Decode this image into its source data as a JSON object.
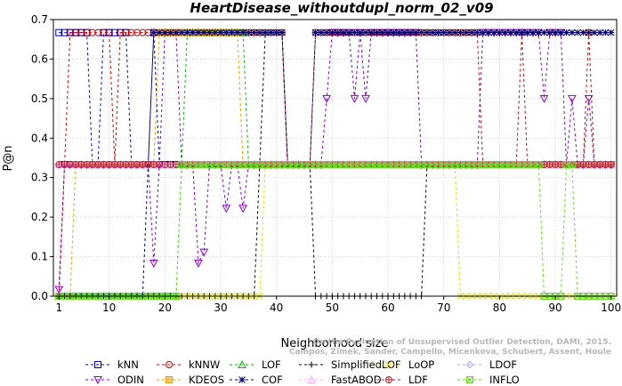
{
  "chart_data": {
    "type": "line",
    "title": "HeartDisease_withoutdupl_norm_02_v09",
    "xlabel": "Neighborhood size",
    "ylabel": "P@n",
    "xlim": [
      0,
      101
    ],
    "ylim": [
      0,
      0.7
    ],
    "x_ticks": [
      1,
      10,
      20,
      30,
      40,
      50,
      60,
      70,
      80,
      90,
      100
    ],
    "y_ticks": [
      0.0,
      0.1,
      0.2,
      0.3,
      0.4,
      0.5,
      0.6,
      0.7
    ],
    "x_tick_labels": [
      "1",
      "10",
      "20",
      "30",
      "40",
      "50",
      "60",
      "70",
      "80",
      "90",
      "100"
    ],
    "y_tick_labels": [
      "0.0",
      "0.1",
      "0.2",
      "0.3",
      "0.4",
      "0.5",
      "0.6",
      "0.7"
    ],
    "grid": true,
    "legend_position": "bottom",
    "watermark": [
      "Campos, Zimek, Sander, Campello, Micenkova, Schubert, Assent, Houle",
      "On the Evaluation of Unsupervised Outlier Detection, DAMI, 2015."
    ],
    "series": [
      {
        "name": "kNN",
        "color": "#0000cc",
        "marker": "square",
        "segments": [
          [
            1,
            17,
            0.667
          ],
          [
            7,
            8,
            0.333
          ],
          [
            14,
            17,
            0.333
          ],
          [
            18,
            100,
            0.333
          ]
        ],
        "overrides": [
          [
            9,
            0.667
          ],
          [
            10,
            0.667
          ],
          [
            11,
            0.667
          ],
          [
            12,
            0.667
          ],
          [
            13,
            0.667
          ],
          [
            18,
            0.667
          ]
        ]
      },
      {
        "name": "kNNW",
        "color": "#cc0000",
        "marker": "circle",
        "segments": [
          [
            1,
            1,
            0.0
          ],
          [
            2,
            10,
            0.333
          ],
          [
            11,
            16,
            0.333
          ],
          [
            17,
            100,
            0.333
          ]
        ],
        "overrides": [
          [
            3,
            0.667
          ],
          [
            4,
            0.667
          ],
          [
            5,
            0.667
          ],
          [
            6,
            0.667
          ],
          [
            7,
            0.667
          ],
          [
            8,
            0.667
          ],
          [
            9,
            0.667
          ],
          [
            10,
            0.667
          ],
          [
            12,
            0.667
          ],
          [
            13,
            0.667
          ],
          [
            14,
            0.667
          ],
          [
            15,
            0.667
          ],
          [
            16,
            0.667
          ],
          [
            17,
            0.667
          ],
          [
            18,
            0.667
          ],
          [
            19,
            0.667
          ],
          [
            20,
            0.667
          ],
          [
            21,
            0.667
          ],
          [
            22,
            0.667
          ],
          [
            23,
            0.667
          ],
          [
            24,
            0.667
          ],
          [
            25,
            0.667
          ],
          [
            26,
            0.667
          ],
          [
            27,
            0.667
          ],
          [
            28,
            0.667
          ],
          [
            29,
            0.667
          ],
          [
            30,
            0.667
          ],
          [
            31,
            0.667
          ],
          [
            32,
            0.667
          ],
          [
            33,
            0.667
          ],
          [
            34,
            0.667
          ],
          [
            35,
            0.667
          ],
          [
            36,
            0.667
          ],
          [
            37,
            0.667
          ],
          [
            38,
            0.667
          ],
          [
            39,
            0.667
          ],
          [
            40,
            0.667
          ],
          [
            41,
            0.667
          ],
          [
            47,
            0.667
          ],
          [
            48,
            0.667
          ],
          [
            49,
            0.667
          ],
          [
            50,
            0.667
          ],
          [
            51,
            0.667
          ],
          [
            52,
            0.667
          ],
          [
            53,
            0.667
          ],
          [
            54,
            0.667
          ],
          [
            55,
            0.667
          ],
          [
            56,
            0.667
          ],
          [
            57,
            0.667
          ],
          [
            58,
            0.667
          ],
          [
            59,
            0.667
          ],
          [
            60,
            0.667
          ],
          [
            61,
            0.667
          ],
          [
            62,
            0.667
          ],
          [
            63,
            0.667
          ],
          [
            64,
            0.667
          ],
          [
            65,
            0.667
          ],
          [
            66,
            0.667
          ],
          [
            67,
            0.667
          ],
          [
            68,
            0.667
          ],
          [
            69,
            0.667
          ],
          [
            70,
            0.667
          ],
          [
            71,
            0.667
          ],
          [
            72,
            0.667
          ],
          [
            73,
            0.667
          ],
          [
            74,
            0.667
          ],
          [
            75,
            0.667
          ],
          [
            76,
            0.667
          ],
          [
            84,
            0.667
          ],
          [
            96,
            0.667
          ]
        ]
      },
      {
        "name": "LOF",
        "color": "#00bb00",
        "marker": "triangle-up",
        "segments": [
          [
            1,
            22,
            0.0
          ],
          [
            23,
            35,
            0.333
          ],
          [
            36,
            100,
            0.333
          ]
        ],
        "overrides": [
          [
            24,
            0.667
          ],
          [
            25,
            0.667
          ],
          [
            26,
            0.667
          ],
          [
            27,
            0.667
          ],
          [
            28,
            0.667
          ],
          [
            29,
            0.667
          ],
          [
            30,
            0.667
          ],
          [
            31,
            0.667
          ],
          [
            32,
            0.667
          ],
          [
            33,
            0.667
          ],
          [
            34,
            0.667
          ]
        ]
      },
      {
        "name": "SimplifiedLOF",
        "color": "#000000",
        "marker": "plus",
        "segments": [
          [
            1,
            36,
            0.0
          ],
          [
            37,
            46,
            0.333
          ],
          [
            47,
            66,
            0.0
          ],
          [
            67,
            100,
            0.333
          ]
        ],
        "overrides": [
          [
            38,
            0.667
          ],
          [
            39,
            0.667
          ],
          [
            40,
            0.667
          ],
          [
            41,
            0.667
          ]
        ]
      },
      {
        "name": "LoOP",
        "color": "#dddd00",
        "marker": "x",
        "segments": [
          [
            1,
            37,
            0.0
          ],
          [
            38,
            72,
            0.333
          ],
          [
            73,
            100,
            0.0
          ]
        ],
        "overrides": []
      },
      {
        "name": "LDOF",
        "color": "#aaaaee",
        "marker": "diamond",
        "segments": [
          [
            1,
            100,
            0.333
          ]
        ],
        "overrides": []
      },
      {
        "name": "ODIN",
        "color": "#8800cc",
        "marker": "triangle-down",
        "segments": [
          [
            1,
            1,
            0.0167
          ],
          [
            2,
            100,
            0.333
          ]
        ],
        "overrides": [
          [
            18,
            0.0833
          ],
          [
            26,
            0.0833
          ],
          [
            27,
            0.111
          ],
          [
            31,
            0.222
          ],
          [
            34,
            0.222
          ],
          [
            49,
            0.5
          ],
          [
            54,
            0.5
          ],
          [
            56,
            0.5
          ],
          [
            88,
            0.5
          ],
          [
            93,
            0.5
          ],
          [
            96,
            0.5
          ],
          [
            20,
            0.667
          ],
          [
            21,
            0.667
          ],
          [
            22,
            0.667
          ],
          [
            50,
            0.667
          ],
          [
            51,
            0.667
          ],
          [
            52,
            0.667
          ],
          [
            53,
            0.667
          ],
          [
            55,
            0.667
          ],
          [
            57,
            0.667
          ],
          [
            58,
            0.667
          ],
          [
            59,
            0.667
          ],
          [
            60,
            0.667
          ],
          [
            61,
            0.667
          ],
          [
            62,
            0.667
          ],
          [
            63,
            0.667
          ],
          [
            64,
            0.667
          ],
          [
            65,
            0.667
          ],
          [
            77,
            0.667
          ],
          [
            78,
            0.667
          ],
          [
            79,
            0.667
          ],
          [
            80,
            0.667
          ],
          [
            81,
            0.667
          ],
          [
            82,
            0.667
          ],
          [
            83,
            0.667
          ],
          [
            84,
            0.667
          ],
          [
            85,
            0.667
          ],
          [
            86,
            0.667
          ],
          [
            87,
            0.667
          ],
          [
            89,
            0.667
          ],
          [
            90,
            0.667
          ],
          [
            91,
            0.667
          ]
        ]
      },
      {
        "name": "KDEOS",
        "color": "#ee9900",
        "marker": "square-filled",
        "segments": [
          [
            1,
            3,
            0.0
          ],
          [
            4,
            100,
            0.333
          ]
        ],
        "overrides": [
          [
            19,
            0.667
          ],
          [
            20,
            0.667
          ],
          [
            21,
            0.667
          ],
          [
            22,
            0.667
          ],
          [
            23,
            0.667
          ],
          [
            24,
            0.667
          ],
          [
            25,
            0.667
          ],
          [
            26,
            0.667
          ],
          [
            27,
            0.667
          ],
          [
            28,
            0.667
          ],
          [
            29,
            0.667
          ],
          [
            30,
            0.667
          ],
          [
            31,
            0.667
          ],
          [
            32,
            0.667
          ],
          [
            33,
            0.667
          ]
        ]
      },
      {
        "name": "COF",
        "color": "#000066",
        "marker": "star",
        "segments": [
          [
            1,
            16,
            0.0
          ],
          [
            17,
            100,
            0.333
          ]
        ],
        "overrides": [
          [
            18,
            0.667
          ],
          [
            19,
            0.667
          ],
          [
            20,
            0.667
          ],
          [
            21,
            0.667
          ],
          [
            22,
            0.667
          ],
          [
            23,
            0.667
          ],
          [
            24,
            0.667
          ],
          [
            25,
            0.667
          ],
          [
            26,
            0.667
          ],
          [
            27,
            0.667
          ],
          [
            28,
            0.667
          ],
          [
            29,
            0.667
          ],
          [
            30,
            0.667
          ],
          [
            31,
            0.667
          ],
          [
            32,
            0.667
          ],
          [
            33,
            0.667
          ],
          [
            34,
            0.667
          ],
          [
            35,
            0.667
          ],
          [
            36,
            0.667
          ],
          [
            37,
            0.667
          ],
          [
            38,
            0.667
          ],
          [
            39,
            0.667
          ],
          [
            40,
            0.667
          ],
          [
            41,
            0.667
          ],
          [
            47,
            0.667
          ],
          [
            48,
            0.667
          ],
          [
            49,
            0.667
          ],
          [
            50,
            0.667
          ],
          [
            51,
            0.667
          ],
          [
            52,
            0.667
          ],
          [
            53,
            0.667
          ],
          [
            54,
            0.667
          ],
          [
            55,
            0.667
          ],
          [
            56,
            0.667
          ],
          [
            57,
            0.667
          ],
          [
            58,
            0.667
          ],
          [
            59,
            0.667
          ],
          [
            60,
            0.667
          ],
          [
            61,
            0.667
          ],
          [
            62,
            0.667
          ],
          [
            63,
            0.667
          ],
          [
            64,
            0.667
          ],
          [
            65,
            0.667
          ],
          [
            66,
            0.667
          ],
          [
            67,
            0.667
          ],
          [
            68,
            0.667
          ],
          [
            69,
            0.667
          ],
          [
            70,
            0.667
          ],
          [
            71,
            0.667
          ],
          [
            72,
            0.667
          ],
          [
            73,
            0.667
          ],
          [
            74,
            0.667
          ],
          [
            75,
            0.667
          ],
          [
            76,
            0.667
          ],
          [
            77,
            0.667
          ],
          [
            78,
            0.667
          ],
          [
            79,
            0.667
          ],
          [
            80,
            0.667
          ],
          [
            81,
            0.667
          ],
          [
            82,
            0.667
          ],
          [
            83,
            0.667
          ],
          [
            84,
            0.667
          ],
          [
            85,
            0.667
          ],
          [
            86,
            0.667
          ],
          [
            87,
            0.667
          ],
          [
            88,
            0.667
          ],
          [
            89,
            0.667
          ],
          [
            90,
            0.667
          ],
          [
            91,
            0.667
          ],
          [
            92,
            0.667
          ],
          [
            93,
            0.667
          ],
          [
            94,
            0.667
          ],
          [
            95,
            0.667
          ],
          [
            96,
            0.667
          ],
          [
            97,
            0.667
          ],
          [
            98,
            0.667
          ],
          [
            99,
            0.667
          ],
          [
            100,
            0.667
          ]
        ]
      },
      {
        "name": "FastABOD",
        "color": "#ffaaff",
        "marker": "triangle-up",
        "segments": [
          [
            1,
            100,
            0.333
          ]
        ],
        "overrides": []
      },
      {
        "name": "LDF",
        "color": "#bb2233",
        "marker": "circle-plus",
        "segments": [
          [
            1,
            100,
            0.333
          ]
        ],
        "overrides": []
      },
      {
        "name": "INFLO",
        "color": "#66dd22",
        "marker": "square-x",
        "segments": [
          [
            1,
            22,
            0.0
          ],
          [
            23,
            100,
            0.333
          ]
        ],
        "overrides": [
          [
            88,
            0.0
          ],
          [
            89,
            0.0
          ],
          [
            90,
            0.0
          ],
          [
            91,
            0.0
          ],
          [
            94,
            0.0
          ],
          [
            95,
            0.0
          ],
          [
            96,
            0.0
          ],
          [
            97,
            0.0
          ],
          [
            98,
            0.0
          ],
          [
            99,
            0.0
          ],
          [
            100,
            0.0
          ]
        ]
      }
    ]
  }
}
